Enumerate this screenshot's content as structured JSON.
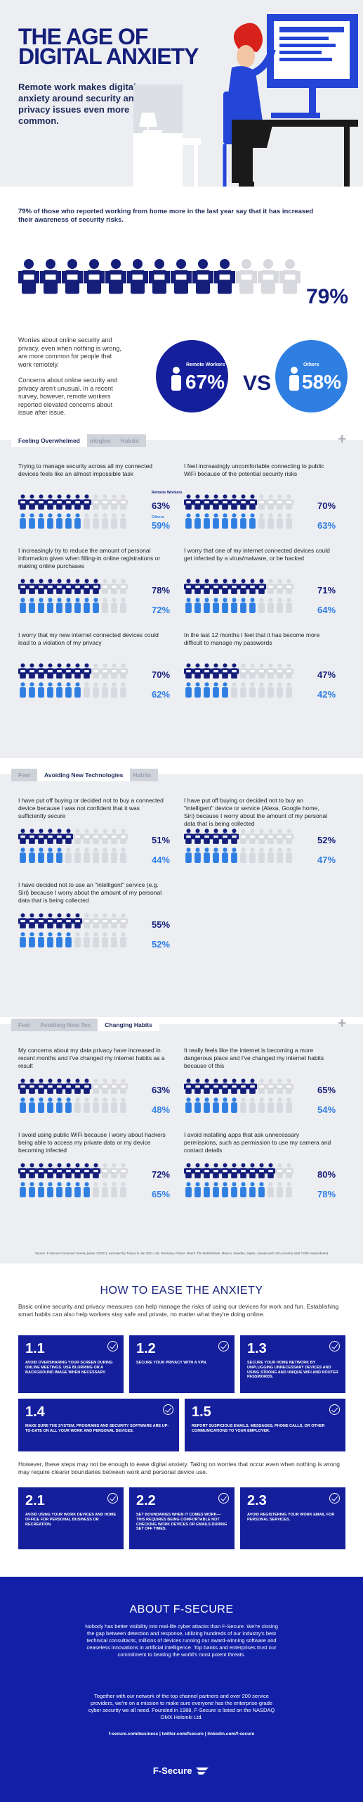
{
  "hero": {
    "title_line1": "THE AGE OF",
    "title_line2": "DIGITAL ANXIETY",
    "subtitle": "Remote work makes digital anxiety around security and privacy issues even more common."
  },
  "intro": {
    "lead": "79% of those who reported working from home more in the last year say that it has increased their awareness of security risks.",
    "headline_pct": "79%",
    "headline_fraction": 0.79,
    "worries_text": "Worries about online security and privacy, even when nothing is wrong, are more common for people that work remotely.",
    "concerns_text": "Concerns about online security and privacy aren't unusual. In a recent survey, however, remote workers reported elevated concerns about issue after issue.",
    "remote_label": "Remote Workers",
    "remote_pct": "67%",
    "vs": "VS",
    "others_label": "Others",
    "others_pct": "58%"
  },
  "colors": {
    "navy": "#151f7a",
    "blue": "#2f7fe3",
    "grey": "#d7d9de",
    "bg": "#eceef2"
  },
  "legend": {
    "remote": "Remote Workers",
    "others": "Others"
  },
  "tabs": {
    "t1": [
      "Feeling Overwhelmed",
      "ologies",
      "Habits"
    ],
    "t2": [
      "Feel",
      "Avoiding New Technologies",
      "Habits"
    ],
    "t3": [
      "Feel",
      "Avoiding New Tec",
      "Changing Habits"
    ],
    "plus": "+"
  },
  "sections": [
    {
      "items": [
        {
          "q": "Trying to manage security across all my connected devices feels like an almost impossible task",
          "remote": "63%",
          "others": "59%",
          "rv": 0.63,
          "ov": 0.59
        },
        {
          "q": "I feel increasingly uncomfortable connecting to public WiFi because of the potential security risks",
          "remote": "70%",
          "others": "63%",
          "rv": 0.7,
          "ov": 0.63
        },
        {
          "q": "I increasingly try to reduce the amount of personal information given when filling-in online registrations or making online purchases",
          "remote": "78%",
          "others": "72%",
          "rv": 0.78,
          "ov": 0.72
        },
        {
          "q": "I worry that one of my internet connected devices could get infected by a virus/malware, or be hacked",
          "remote": "71%",
          "others": "64%",
          "rv": 0.71,
          "ov": 0.64
        },
        {
          "q": "I worry that my new internet connected devices could lead to a violation of my privacy",
          "remote": "70%",
          "others": "62%",
          "rv": 0.7,
          "ov": 0.62
        },
        {
          "q": "In the last 12 months I feel that it has become more difficult to manage my passwords",
          "remote": "47%",
          "others": "42%",
          "rv": 0.47,
          "ov": 0.42
        }
      ]
    },
    {
      "items": [
        {
          "q": "I have put off buying or decided not to buy a connected device because I was not confident that it was sufficiently secure",
          "remote": "51%",
          "others": "44%",
          "rv": 0.51,
          "ov": 0.44
        },
        {
          "q": "I have put off buying or decided not to buy an \"intelligent\" device or service (Alexa, Google home, Siri) because I worry about the amount of my personal data that is being collected",
          "remote": "52%",
          "others": "47%",
          "rv": 0.52,
          "ov": 0.47
        },
        {
          "q": "I have decided not to use an \"intelligent\" service (e.g. Siri) because I worry about the amount of my personal data that is being collected",
          "remote": "55%",
          "others": "52%",
          "rv": 0.55,
          "ov": 0.52
        }
      ]
    },
    {
      "items": [
        {
          "q": "My concerns about my data privacy have increased in recent months and I've changed my internet habits as a result",
          "remote": "63%",
          "others": "48%",
          "rv": 0.63,
          "ov": 0.48
        },
        {
          "q": "It really feels like the internet is becoming a more dangerous place and I've changed my internet habits because of this",
          "remote": "65%",
          "others": "54%",
          "rv": 0.65,
          "ov": 0.54
        },
        {
          "q": "I avoid using public WiFi because I worry about hackers being able to access my private data or my device becoming infected",
          "remote": "72%",
          "others": "65%",
          "rv": 0.72,
          "ov": 0.65
        },
        {
          "q": "I avoid installing apps that ask unnecessary permissions, such as permission to use my camera and contact details",
          "remote": "80%",
          "others": "78%",
          "rv": 0.8,
          "ov": 0.78
        }
      ]
    }
  ],
  "source": "Source: F-Secure Consumer Survey (wave 1/2021), executed by Toluna in Jan 2021, UK, Germany, France, Brazil, The Netherlands, Mexico, Sweden, Japan, canada and USA (country total 7,000 respondents)",
  "howto": {
    "title": "HOW TO EASE THE ANXIETY",
    "intro": "Basic online security and privacy measures can help manage the risks of using our devices for work and fun. Establishing smart habits can also help workers stay safe and private, no matter what they're doing online.",
    "tips1": [
      {
        "num": "1.1",
        "text": "AVOID OVERSHARING YOUR SCREEN DURING ONLINE MEETINGS. USE BLURRING OR A BACKGROUND IMAGE WHEN NECESSARY."
      },
      {
        "num": "1.2",
        "text": "SECURE YOUR PRIVACY WITH A VPN."
      },
      {
        "num": "1.3",
        "text": "SECURE YOUR HOME NETWORK BY UNPLUGGING UNNECESSARY DEVICES AND USING STRONG AND UNIQUE WIFI AND ROUTER PASSWORDS."
      },
      {
        "num": "1.4",
        "text": "MAKE SURE THE SYSTEM, PROGRAMS AND SECURITY SOFTWARE ARE UP-TO-DATE ON ALL YOUR WORK AND PERSONAL DEVICES."
      },
      {
        "num": "1.5",
        "text": "REPORT SUSPICIOUS EMAILS, MESSAGES, PHONE CALLS, OR OTHER COMMUNICATIONS TO YOUR EMPLOYER."
      }
    ],
    "mid": "However, these steps may not be enough to ease digital anxiety. Taking on worries that occur even when nothing is wrong may require clearer boundaries between work and personal device use.",
    "tips2": [
      {
        "num": "2.1",
        "text": "AVOID USING YOUR WORK DEVICES AND HOME OFFICE FOR PERSONAL BUSINESS OR RECREATION."
      },
      {
        "num": "2.2",
        "text": "SET BOUNDARIES WHEN IT COMES WORK—THIS REQUIRES BEING COMFORTABLE NOT CHECKING WORK DEVICES OR EMAILS DURING SET OFF TIMES."
      },
      {
        "num": "2.3",
        "text": "AVOID REGISTERING YOUR WORK EMAIL FOR PERSONAL SERVICES."
      }
    ]
  },
  "about": {
    "title": "ABOUT F-SECURE",
    "p1": "Nobody has better visibility into real-life cyber attacks than F-Secure. We're closing the gap between detection and response, utilizing hundreds of our industry's best technical consultants, millions of devices running our award-winning software and ceaseless innovations in artificial intelligence. Top banks and enterprises trust our commitment to beating the world's most potent threats.",
    "p2": "Together with our network of the top channel partners and over 200 service providers, we're on a mission to make sure everyone has the enterprise-grade cyber security we all need. Founded in 1988, F-Secure is listed on the NASDAQ OMX Helsinki Ltd.",
    "links": "f-secure.com/business  |  twitter.com/fsecure  |  linkedin.com/f-secure",
    "logo": "F-Secure"
  }
}
